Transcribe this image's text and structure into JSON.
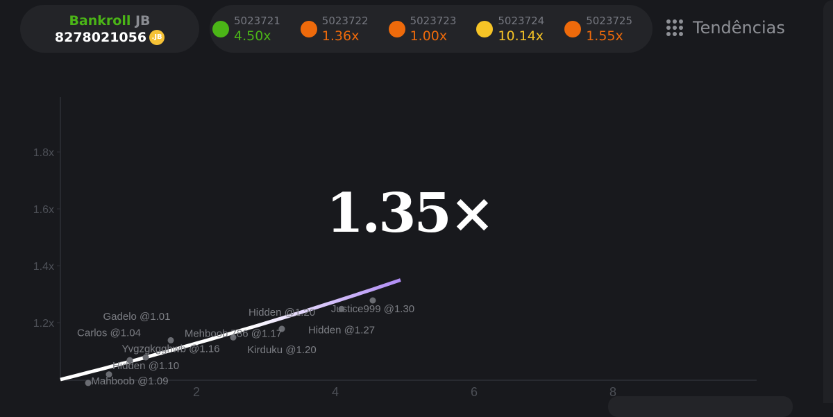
{
  "bankroll": {
    "label": "Bankroll",
    "currency": "JB",
    "amount": "8278021056",
    "coin_label": ".JB"
  },
  "history": [
    {
      "id": "5023721",
      "multiplier": "4.50x",
      "color": "#4bb517"
    },
    {
      "id": "5023722",
      "multiplier": "1.36x",
      "color": "#ee6a0b"
    },
    {
      "id": "5023723",
      "multiplier": "1.00x",
      "color": "#ee6a0b"
    },
    {
      "id": "5023724",
      "multiplier": "10.14x",
      "color": "#f6c426"
    },
    {
      "id": "5023725",
      "multiplier": "1.55x",
      "color": "#ee6a0b"
    }
  ],
  "trends_label": "Tendências",
  "current_multiplier": "1.35×",
  "chart_data": {
    "type": "line",
    "xlim": [
      0,
      10
    ],
    "ylim": [
      1.0,
      2.0
    ],
    "x_ticks": [
      "2",
      "4",
      "6",
      "8"
    ],
    "y_ticks": [
      "1.2x",
      "1.4x",
      "1.6x",
      "1.8x"
    ],
    "curve_end": {
      "x": 4.9,
      "y": 1.35
    },
    "colors": {
      "curve_start": "#ffffff",
      "curve_end": "#b08cf5"
    },
    "players": [
      {
        "label": "Justice999 @1.30",
        "x": 4.5,
        "y": 1.3
      },
      {
        "label": "Hidden @1.27",
        "x": 4.05,
        "y": 1.27
      },
      {
        "label": "Kirduku @1.20",
        "x": 3.19,
        "y": 1.2
      },
      {
        "label": "Hidden @1.20",
        "x": 3.19,
        "y": 1.2
      },
      {
        "label": "Mehboob 786 @1.17",
        "x": 2.49,
        "y": 1.17
      },
      {
        "label": "Yvgzgkgghwb @1.16",
        "x": 1.59,
        "y": 1.16
      },
      {
        "label": "Hidden @1.10",
        "x": 1.23,
        "y": 1.1
      },
      {
        "label": "Mahboob @1.09",
        "x": 1.0,
        "y": 1.09
      },
      {
        "label": "Carlos @1.04",
        "x": 0.7,
        "y": 1.04
      },
      {
        "label": "Gadelo @1.01",
        "x": 0.4,
        "y": 1.01
      }
    ]
  }
}
